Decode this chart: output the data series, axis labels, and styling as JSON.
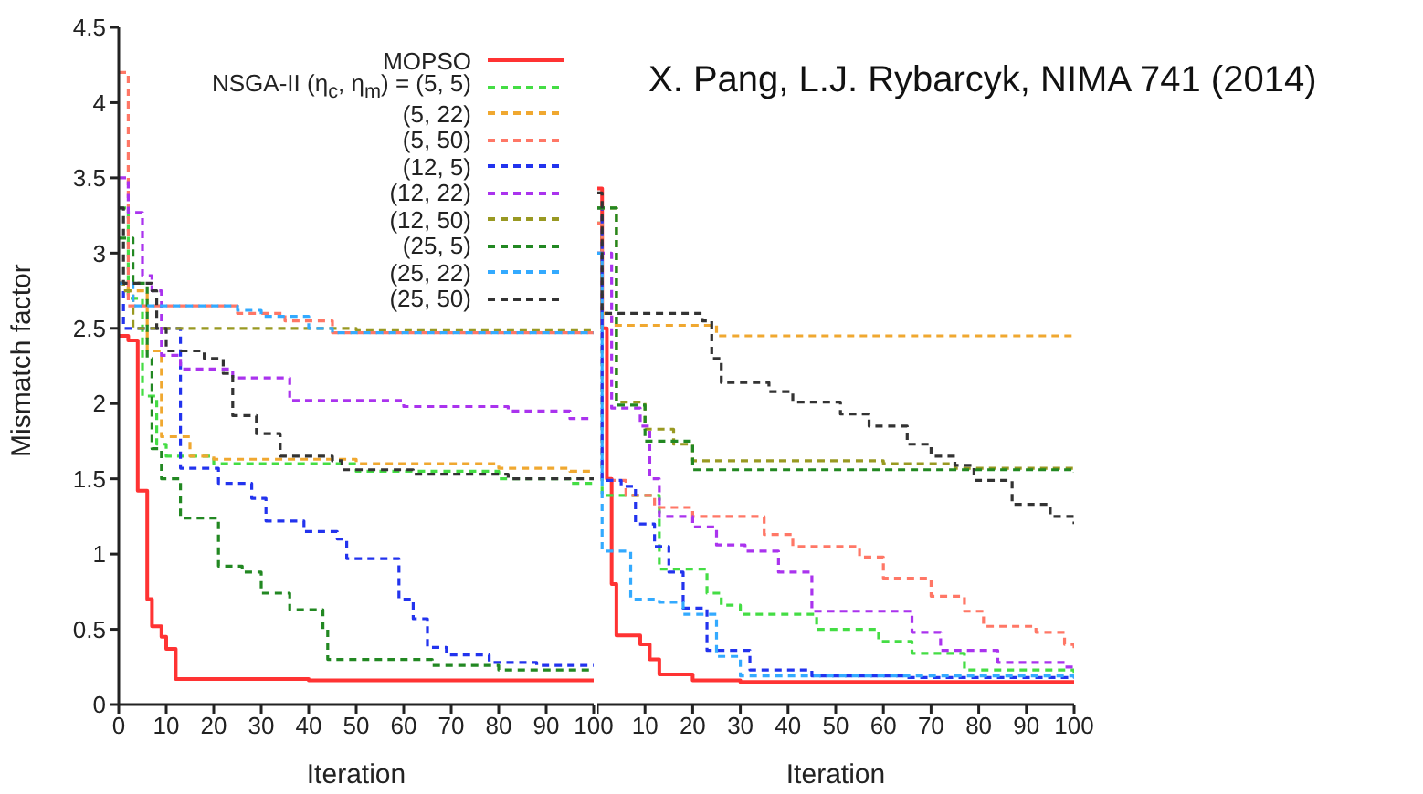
{
  "chart_data": [
    {
      "type": "step",
      "xlabel": "Iteration",
      "ylabel": "Mismatch factor",
      "xlim": [
        0,
        100
      ],
      "xticks": [
        0,
        10,
        20,
        30,
        40,
        50,
        60,
        70,
        80,
        90,
        100
      ],
      "ylim": [
        0,
        4.5
      ],
      "yticks": [
        0,
        0.5,
        1,
        1.5,
        2,
        2.5,
        3,
        3.5,
        4,
        4.5
      ],
      "marker": "none",
      "legend": "top right",
      "series": [
        {
          "name": "MOPSO",
          "color": "#ff3333",
          "line_style": "solid",
          "x": [
            0,
            2,
            4,
            6,
            7,
            9,
            10,
            12,
            40,
            100
          ],
          "values": [
            2.45,
            2.42,
            1.42,
            0.7,
            0.52,
            0.45,
            0.37,
            0.17,
            0.16,
            0.15
          ]
        },
        {
          "name": "NSGA-II (η$_{c}$, η$_{m}$) = (5, 5)",
          "color": "#44dd44",
          "line_style": "dashed",
          "x": [
            0,
            2,
            5,
            8,
            10,
            20,
            50,
            80,
            95,
            100
          ],
          "values": [
            3.3,
            2.7,
            2.05,
            1.73,
            1.65,
            1.6,
            1.55,
            1.5,
            1.47,
            1.47
          ]
        },
        {
          "name": "(5, 22)",
          "color": "#f0a830",
          "line_style": "dashed",
          "x": [
            0,
            2,
            6,
            9,
            15,
            20,
            50,
            80,
            95,
            100
          ],
          "values": [
            2.8,
            2.75,
            2.35,
            1.78,
            1.65,
            1.63,
            1.6,
            1.57,
            1.55,
            1.55
          ]
        },
        {
          "name": "(5, 50)",
          "color": "#ff7766",
          "line_style": "dashed",
          "x": [
            0,
            2,
            25,
            35,
            45,
            100
          ],
          "values": [
            4.2,
            2.65,
            2.6,
            2.55,
            2.47,
            2.46
          ]
        },
        {
          "name": "(12, 5)",
          "color": "#2233ee",
          "line_style": "dashed",
          "x": [
            0,
            1,
            13,
            21,
            28,
            31,
            39,
            46,
            48,
            59,
            62,
            65,
            69,
            78,
            88,
            100
          ],
          "values": [
            2.8,
            2.5,
            1.57,
            1.47,
            1.37,
            1.22,
            1.15,
            1.1,
            0.97,
            0.7,
            0.57,
            0.38,
            0.33,
            0.28,
            0.26,
            0.26
          ]
        },
        {
          "name": "(12, 22)",
          "color": "#aa33ee",
          "line_style": "dashed",
          "x": [
            0,
            2,
            5,
            7,
            9,
            13,
            24,
            36,
            60,
            82,
            95,
            100
          ],
          "values": [
            3.5,
            3.27,
            2.85,
            2.75,
            2.32,
            2.23,
            2.17,
            2.02,
            1.98,
            1.95,
            1.9,
            1.9
          ]
        },
        {
          "name": "(12, 50)",
          "color": "#999922",
          "line_style": "dashed",
          "x": [
            0,
            1,
            3,
            50,
            100
          ],
          "values": [
            2.8,
            2.75,
            2.5,
            2.49,
            2.48
          ]
        },
        {
          "name": "(25, 5)",
          "color": "#228822",
          "line_style": "dashed",
          "x": [
            0,
            3,
            6,
            7,
            9,
            13,
            21,
            26,
            30,
            36,
            43,
            44,
            66,
            80,
            100
          ],
          "values": [
            3.1,
            2.8,
            2.3,
            1.7,
            1.5,
            1.24,
            0.92,
            0.88,
            0.74,
            0.63,
            0.5,
            0.3,
            0.26,
            0.23,
            0.23
          ]
        },
        {
          "name": "(25, 22)",
          "color": "#33aaff",
          "line_style": "dashed",
          "x": [
            0,
            1,
            3,
            25,
            30,
            40,
            45,
            100
          ],
          "values": [
            2.8,
            2.8,
            2.65,
            2.62,
            2.58,
            2.5,
            2.47,
            2.47
          ]
        },
        {
          "name": "(25, 50)",
          "color": "#333333",
          "line_style": "dashed",
          "x": [
            0,
            1,
            7,
            8,
            10,
            18,
            22,
            24,
            29,
            34,
            45,
            47,
            62,
            82,
            100
          ],
          "values": [
            3.3,
            2.8,
            2.75,
            2.5,
            2.35,
            2.3,
            2.2,
            1.92,
            1.8,
            1.65,
            1.62,
            1.56,
            1.53,
            1.5,
            1.5
          ]
        }
      ]
    },
    {
      "type": "step",
      "xlabel": "Iteration",
      "xlim": [
        0,
        100
      ],
      "xticks": [
        {
          "value": 0,
          "label": null
        },
        10,
        20,
        30,
        40,
        50,
        60,
        70,
        80,
        90,
        100
      ],
      "ylim": [
        0,
        4.5
      ],
      "yticks": [
        0,
        0.5,
        1,
        1.5,
        2,
        2.5,
        3,
        3.5,
        4,
        4.5
      ],
      "tick_labels": "x",
      "marker": "none",
      "annotations": [
        "X. Pang, L.J. Rybarcyk, NIMA 741 (2014)"
      ],
      "series": [
        {
          "color": "#ff3333",
          "line_style": "solid",
          "x": [
            0,
            1,
            2,
            3,
            4,
            9,
            11,
            13,
            20,
            30,
            100
          ],
          "values": [
            3.43,
            2.5,
            1.5,
            0.8,
            0.46,
            0.4,
            0.3,
            0.2,
            0.16,
            0.15,
            0.15
          ]
        },
        {
          "color": "#44dd44",
          "line_style": "dashed",
          "x": [
            0,
            1,
            13,
            23,
            26,
            30,
            46,
            59,
            66,
            77,
            100
          ],
          "values": [
            3.2,
            1.39,
            0.9,
            0.74,
            0.66,
            0.6,
            0.5,
            0.42,
            0.34,
            0.23,
            0.21
          ]
        },
        {
          "color": "#f0a830",
          "line_style": "dashed",
          "x": [
            0,
            1,
            3,
            25,
            100
          ],
          "values": [
            3.0,
            2.6,
            2.52,
            2.45,
            2.45
          ]
        },
        {
          "color": "#ff7766",
          "line_style": "dashed",
          "x": [
            0,
            1,
            6,
            12,
            20,
            35,
            41,
            55,
            60,
            70,
            77,
            81,
            92,
            98,
            100
          ],
          "values": [
            3.2,
            1.49,
            1.39,
            1.31,
            1.25,
            1.13,
            1.05,
            0.98,
            0.84,
            0.72,
            0.62,
            0.52,
            0.48,
            0.4,
            0.34
          ]
        },
        {
          "color": "#2233ee",
          "line_style": "dashed",
          "x": [
            0,
            1,
            5,
            8,
            12,
            15,
            18,
            23,
            32,
            45,
            65,
            100
          ],
          "values": [
            3.3,
            1.49,
            1.45,
            1.2,
            1.05,
            0.88,
            0.64,
            0.36,
            0.23,
            0.19,
            0.18,
            0.18
          ]
        },
        {
          "color": "#aa33ee",
          "line_style": "dashed",
          "x": [
            0,
            3,
            9,
            11,
            13,
            20,
            25,
            31,
            38,
            45,
            66,
            72,
            84,
            98,
            100
          ],
          "values": [
            3.0,
            1.97,
            1.85,
            1.5,
            1.25,
            1.18,
            1.06,
            1.02,
            0.88,
            0.62,
            0.48,
            0.36,
            0.28,
            0.25,
            0.25
          ]
        },
        {
          "color": "#999922",
          "line_style": "dashed",
          "x": [
            0,
            4,
            10,
            16,
            20,
            60,
            75,
            100
          ],
          "values": [
            3.3,
            2.01,
            1.83,
            1.73,
            1.62,
            1.6,
            1.57,
            1.55
          ]
        },
        {
          "color": "#228822",
          "line_style": "dashed",
          "x": [
            0,
            4,
            10,
            20,
            100
          ],
          "values": [
            3.3,
            1.99,
            1.75,
            1.56,
            1.54
          ]
        },
        {
          "color": "#33aaff",
          "line_style": "dashed",
          "x": [
            0,
            1,
            7,
            13,
            18,
            25,
            30,
            100
          ],
          "values": [
            3.0,
            1.02,
            0.7,
            0.68,
            0.6,
            0.32,
            0.19,
            0.17
          ]
        },
        {
          "color": "#333333",
          "line_style": "dashed",
          "x": [
            0,
            1,
            22,
            24,
            26,
            36,
            41,
            51,
            57,
            65,
            70,
            75,
            79,
            87,
            95,
            100
          ],
          "values": [
            3.4,
            2.6,
            2.55,
            2.3,
            2.14,
            2.08,
            2.01,
            1.93,
            1.85,
            1.73,
            1.65,
            1.59,
            1.49,
            1.33,
            1.25,
            1.2
          ]
        }
      ]
    }
  ]
}
